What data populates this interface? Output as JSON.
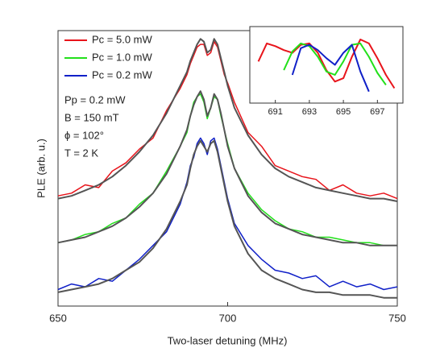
{
  "chart_data": {
    "type": "line",
    "xlabel": "Two-laser detuning (MHz)",
    "ylabel": "PLE (arb. u.)",
    "xlim": [
      650,
      750
    ],
    "xticks": [
      650,
      700,
      750
    ],
    "ylim": [
      0,
      1
    ],
    "legend": "upper left",
    "annotations": [
      "Pp = 0.2 mW",
      "B = 150 mT",
      "ϕ = 102°",
      "T = 2 K"
    ],
    "x": [
      650,
      654,
      658,
      662,
      666,
      670,
      674,
      678,
      682,
      686,
      688,
      689,
      690,
      691,
      692,
      693,
      694,
      695,
      696,
      697,
      698,
      699,
      700,
      702,
      706,
      710,
      714,
      718,
      722,
      726,
      730,
      734,
      738,
      742,
      746,
      750
    ],
    "series": [
      {
        "name": "Pc = 5.0 mW",
        "color": "#e8141b",
        "values": [
          0.4,
          0.41,
          0.44,
          0.43,
          0.49,
          0.52,
          0.57,
          0.61,
          0.71,
          0.79,
          0.84,
          0.88,
          0.91,
          0.94,
          0.95,
          0.95,
          0.91,
          0.92,
          0.96,
          0.94,
          0.89,
          0.84,
          0.81,
          0.74,
          0.63,
          0.58,
          0.51,
          0.49,
          0.47,
          0.46,
          0.42,
          0.44,
          0.41,
          0.4,
          0.41,
          0.39
        ]
      },
      {
        "name": "Pc = 1.0 mW",
        "color": "#22e01a",
        "values": [
          0.23,
          0.24,
          0.26,
          0.27,
          0.3,
          0.32,
          0.37,
          0.41,
          0.49,
          0.58,
          0.63,
          0.69,
          0.74,
          0.76,
          0.77,
          0.74,
          0.68,
          0.72,
          0.76,
          0.75,
          0.69,
          0.64,
          0.59,
          0.5,
          0.41,
          0.35,
          0.31,
          0.28,
          0.27,
          0.25,
          0.25,
          0.24,
          0.23,
          0.23,
          0.22,
          0.22
        ]
      },
      {
        "name": "Pc = 0.2 mW",
        "color": "#1020c8",
        "values": [
          0.06,
          0.08,
          0.07,
          0.1,
          0.09,
          0.13,
          0.17,
          0.22,
          0.27,
          0.37,
          0.45,
          0.51,
          0.54,
          0.59,
          0.61,
          0.59,
          0.55,
          0.6,
          0.61,
          0.57,
          0.51,
          0.45,
          0.39,
          0.3,
          0.22,
          0.17,
          0.13,
          0.12,
          0.1,
          0.11,
          0.07,
          0.09,
          0.07,
          0.08,
          0.06,
          0.07
        ]
      }
    ],
    "fits": [
      {
        "color": "#555555",
        "values": [
          0.39,
          0.4,
          0.42,
          0.44,
          0.47,
          0.51,
          0.56,
          0.62,
          0.7,
          0.8,
          0.85,
          0.89,
          0.92,
          0.95,
          0.97,
          0.96,
          0.92,
          0.93,
          0.97,
          0.95,
          0.9,
          0.85,
          0.8,
          0.72,
          0.62,
          0.55,
          0.5,
          0.47,
          0.45,
          0.43,
          0.42,
          0.41,
          0.4,
          0.39,
          0.39,
          0.38
        ]
      },
      {
        "color": "#555555",
        "values": [
          0.23,
          0.24,
          0.25,
          0.27,
          0.29,
          0.32,
          0.36,
          0.41,
          0.48,
          0.58,
          0.64,
          0.69,
          0.73,
          0.76,
          0.78,
          0.75,
          0.69,
          0.72,
          0.77,
          0.75,
          0.7,
          0.64,
          0.58,
          0.5,
          0.4,
          0.34,
          0.3,
          0.28,
          0.26,
          0.25,
          0.24,
          0.23,
          0.23,
          0.22,
          0.22,
          0.22
        ]
      },
      {
        "color": "#555555",
        "values": [
          0.05,
          0.06,
          0.07,
          0.08,
          0.1,
          0.13,
          0.16,
          0.21,
          0.28,
          0.38,
          0.44,
          0.5,
          0.55,
          0.58,
          0.6,
          0.58,
          0.56,
          0.59,
          0.6,
          0.56,
          0.5,
          0.44,
          0.38,
          0.29,
          0.19,
          0.13,
          0.1,
          0.08,
          0.06,
          0.05,
          0.05,
          0.04,
          0.04,
          0.04,
          0.03,
          0.03
        ]
      }
    ],
    "inset": {
      "xlim": [
        689.5,
        698.5
      ],
      "xticks": [
        691,
        693,
        695,
        697
      ],
      "ylim": [
        0,
        1
      ],
      "x": [
        690,
        690.5,
        691,
        691.5,
        692,
        692.5,
        693,
        693.5,
        694,
        694.5,
        695,
        695.5,
        696,
        696.5,
        697,
        697.5,
        698
      ],
      "series": [
        {
          "color": "#e8141b",
          "values": [
            0.55,
            0.82,
            0.78,
            0.72,
            0.68,
            0.8,
            0.82,
            0.68,
            0.42,
            0.25,
            0.3,
            0.62,
            0.88,
            0.82,
            0.6,
            0.35,
            0.15
          ]
        },
        {
          "color": "#22e01a",
          "values": [
            null,
            null,
            null,
            0.42,
            0.7,
            0.82,
            0.78,
            0.62,
            0.4,
            0.35,
            0.55,
            0.8,
            0.82,
            0.62,
            0.38,
            0.2,
            null
          ]
        },
        {
          "color": "#1020c8",
          "values": [
            null,
            null,
            null,
            null,
            0.35,
            0.75,
            0.8,
            0.72,
            0.6,
            0.5,
            0.68,
            0.8,
            0.4,
            0.1,
            null,
            null,
            null
          ]
        }
      ]
    }
  }
}
